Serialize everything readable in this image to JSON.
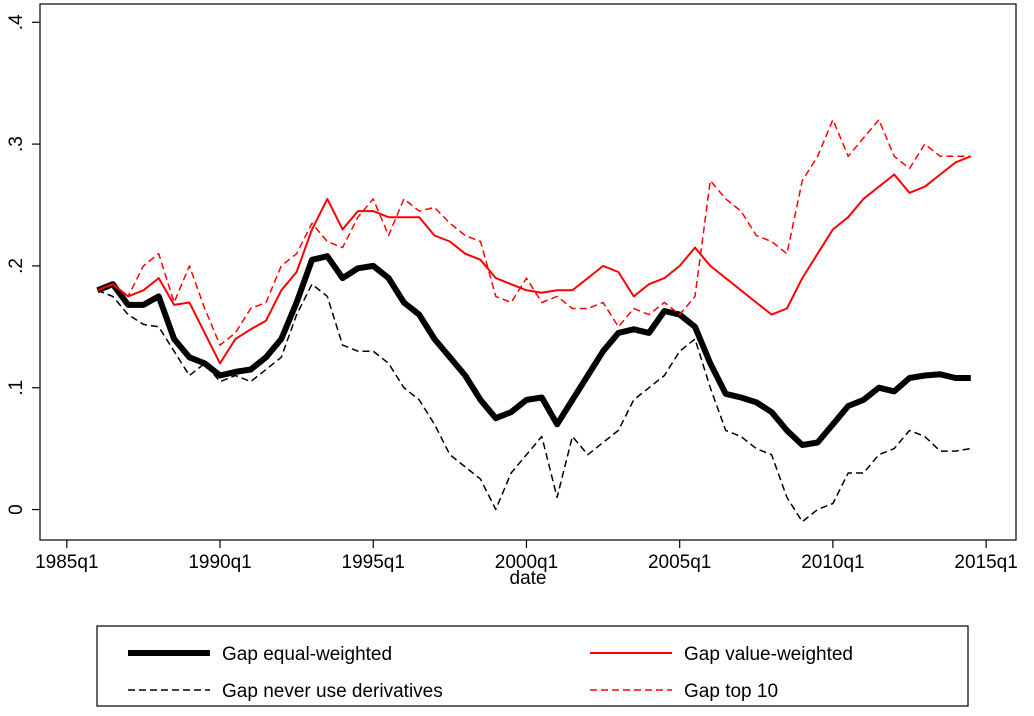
{
  "chart_data": {
    "type": "line",
    "x_label": "date",
    "x": [
      104,
      106,
      108,
      110,
      112,
      114,
      116,
      118,
      120,
      122,
      124,
      126,
      128,
      130,
      132,
      134,
      136,
      138,
      140,
      142,
      144,
      146,
      148,
      150,
      152,
      154,
      156,
      158,
      160,
      162,
      164,
      166,
      168,
      170,
      172,
      174,
      176,
      178,
      180,
      182,
      184,
      186,
      188,
      190,
      192,
      194,
      196,
      198,
      200,
      202,
      204,
      206,
      208,
      210,
      212,
      214,
      216,
      218
    ],
    "series": [
      {
        "name": "Gap equal-weighted",
        "color": "#000000",
        "line_style": "thick",
        "values": [
          0.18,
          0.185,
          0.168,
          0.168,
          0.175,
          0.14,
          0.125,
          0.12,
          0.11,
          0.113,
          0.115,
          0.125,
          0.14,
          0.17,
          0.205,
          0.208,
          0.19,
          0.198,
          0.2,
          0.19,
          0.17,
          0.16,
          0.14,
          0.125,
          0.11,
          0.09,
          0.075,
          0.08,
          0.09,
          0.092,
          0.07,
          0.09,
          0.11,
          0.13,
          0.145,
          0.148,
          0.145,
          0.163,
          0.16,
          0.15,
          0.12,
          0.095,
          0.092,
          0.088,
          0.08,
          0.065,
          0.053,
          0.055,
          0.07,
          0.085,
          0.09,
          0.1,
          0.097,
          0.108,
          0.11,
          0.111,
          0.108,
          0.108
        ]
      },
      {
        "name": "Gap value-weighted",
        "color": "#ff0000",
        "line_style": "solid",
        "values": [
          0.18,
          0.185,
          0.175,
          0.18,
          0.19,
          0.168,
          0.17,
          0.145,
          0.12,
          0.14,
          0.148,
          0.155,
          0.18,
          0.195,
          0.23,
          0.255,
          0.23,
          0.245,
          0.245,
          0.24,
          0.24,
          0.24,
          0.225,
          0.22,
          0.21,
          0.205,
          0.19,
          0.185,
          0.18,
          0.178,
          0.18,
          0.18,
          0.19,
          0.2,
          0.195,
          0.175,
          0.185,
          0.19,
          0.2,
          0.215,
          0.2,
          0.19,
          0.18,
          0.17,
          0.16,
          0.165,
          0.19,
          0.21,
          0.23,
          0.24,
          0.255,
          0.265,
          0.275,
          0.26,
          0.265,
          0.275,
          0.285,
          0.29
        ]
      },
      {
        "name": "Gap never use derivatives",
        "color": "#000000",
        "line_style": "dashed",
        "values": [
          0.18,
          0.175,
          0.16,
          0.152,
          0.15,
          0.13,
          0.11,
          0.12,
          0.105,
          0.11,
          0.105,
          0.115,
          0.125,
          0.16,
          0.185,
          0.175,
          0.135,
          0.13,
          0.13,
          0.12,
          0.1,
          0.09,
          0.07,
          0.045,
          0.035,
          0.025,
          0,
          0.03,
          0.045,
          0.06,
          0.01,
          0.06,
          0.045,
          0.055,
          0.065,
          0.09,
          0.1,
          0.11,
          0.13,
          0.14,
          0.1,
          0.065,
          0.06,
          0.05,
          0.045,
          0.01,
          -0.01,
          0,
          0.005,
          0.03,
          0.03,
          0.045,
          0.05,
          0.065,
          0.06,
          0.048,
          0.048,
          0.05
        ]
      },
      {
        "name": "Gap top 10",
        "color": "#ff0000",
        "line_style": "dashed",
        "values": [
          0.18,
          0.185,
          0.175,
          0.2,
          0.21,
          0.17,
          0.2,
          0.165,
          0.135,
          0.145,
          0.165,
          0.17,
          0.2,
          0.21,
          0.235,
          0.22,
          0.215,
          0.24,
          0.255,
          0.225,
          0.255,
          0.245,
          0.248,
          0.235,
          0.225,
          0.22,
          0.175,
          0.17,
          0.19,
          0.17,
          0.175,
          0.165,
          0.165,
          0.17,
          0.15,
          0.165,
          0.16,
          0.17,
          0.16,
          0.175,
          0.27,
          0.255,
          0.245,
          0.225,
          0.22,
          0.21,
          0.27,
          0.29,
          0.32,
          0.29,
          0.305,
          0.32,
          0.29,
          0.28,
          0.3,
          0.29,
          0.29,
          0.29
        ]
      }
    ],
    "xlim": [
      96.5,
      223.9
    ],
    "xticks": [
      {
        "value": 100,
        "label": "1985q1"
      },
      {
        "value": 120,
        "label": "1990q1"
      },
      {
        "value": 140,
        "label": "1995q1"
      },
      {
        "value": 160,
        "label": "2000q1"
      },
      {
        "value": 180,
        "label": "2005q1"
      },
      {
        "value": 200,
        "label": "2010q1"
      },
      {
        "value": 220,
        "label": "2015q1"
      }
    ],
    "ylim": [
      -0.025,
      0.415
    ],
    "yticks": [
      0,
      {
        "value": 0.1,
        "label": ".1"
      },
      {
        "value": 0.2,
        "label": ".2"
      },
      {
        "value": 0.3,
        "label": ".3"
      },
      {
        "value": 0.4,
        "label": ".4"
      }
    ],
    "grid": false,
    "legend": "bottom"
  }
}
